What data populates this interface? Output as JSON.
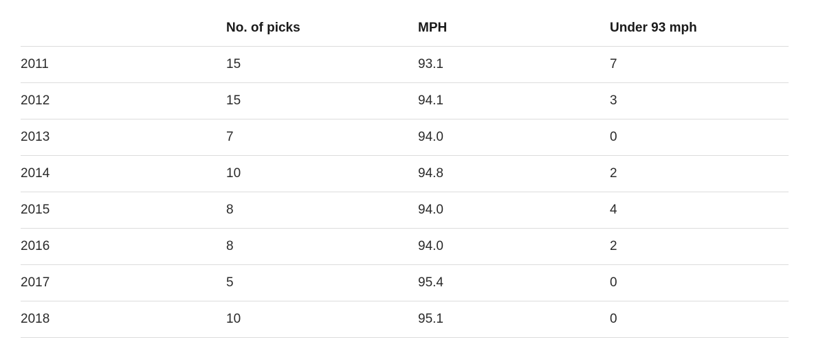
{
  "table": {
    "headers": [
      "",
      "No. of picks",
      "MPH",
      "Under 93 mph"
    ],
    "rows": [
      [
        "2011",
        "15",
        "93.1",
        "7"
      ],
      [
        "2012",
        "15",
        "94.1",
        "3"
      ],
      [
        "2013",
        "7",
        "94.0",
        "0"
      ],
      [
        "2014",
        "10",
        "94.8",
        "2"
      ],
      [
        "2015",
        "8",
        "94.0",
        "4"
      ],
      [
        "2016",
        "8",
        "94.0",
        "2"
      ],
      [
        "2017",
        "5",
        "95.4",
        "0"
      ],
      [
        "2018",
        "10",
        "95.1",
        "0"
      ]
    ]
  }
}
